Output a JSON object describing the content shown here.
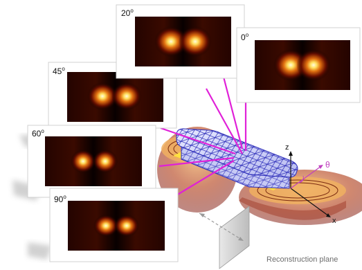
{
  "panels": [
    {
      "id": "20",
      "label": "20",
      "unit": "o"
    },
    {
      "id": "0",
      "label": "0",
      "unit": "o"
    },
    {
      "id": "45",
      "label": "45",
      "unit": "o"
    },
    {
      "id": "60",
      "label": "60",
      "unit": "o"
    },
    {
      "id": "90",
      "label": "90",
      "unit": "o"
    }
  ],
  "axes": {
    "z": "z",
    "x": "x",
    "theta": "θ"
  },
  "caption": "Reconstruction plane",
  "colors": {
    "beam": "#e020d8",
    "mesh": "#2a2ab8",
    "hot": "#fff2a0",
    "cold": "#0c0000",
    "axis_theta": "#c040c0"
  }
}
